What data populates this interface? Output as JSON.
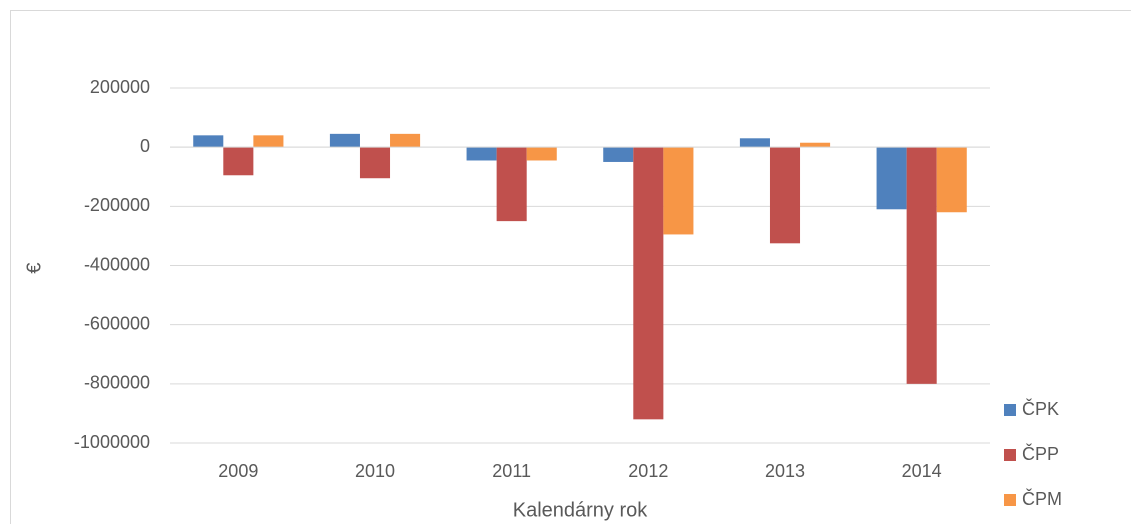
{
  "chart_data": {
    "type": "bar",
    "x_label": "Kalendárny rok",
    "y_label": "€",
    "categories": [
      "2009",
      "2010",
      "2011",
      "2012",
      "2013",
      "2014"
    ],
    "series": [
      {
        "name": "ČPK",
        "color": "#4f81bd",
        "values": [
          40000,
          45000,
          -45000,
          -50000,
          30000,
          -210000
        ]
      },
      {
        "name": "ČPP",
        "color": "#c0504d",
        "values": [
          -95000,
          -105000,
          -250000,
          -920000,
          -325000,
          -800000
        ]
      },
      {
        "name": "ČPM",
        "color": "#f79646",
        "values": [
          40000,
          45000,
          -45000,
          -295000,
          15000,
          -220000
        ]
      }
    ],
    "ylim": [
      -1000000,
      200000
    ],
    "yticks": [
      200000,
      0,
      -200000,
      -400000,
      -600000,
      -800000,
      -1000000
    ],
    "grid": true,
    "legend": "right"
  }
}
